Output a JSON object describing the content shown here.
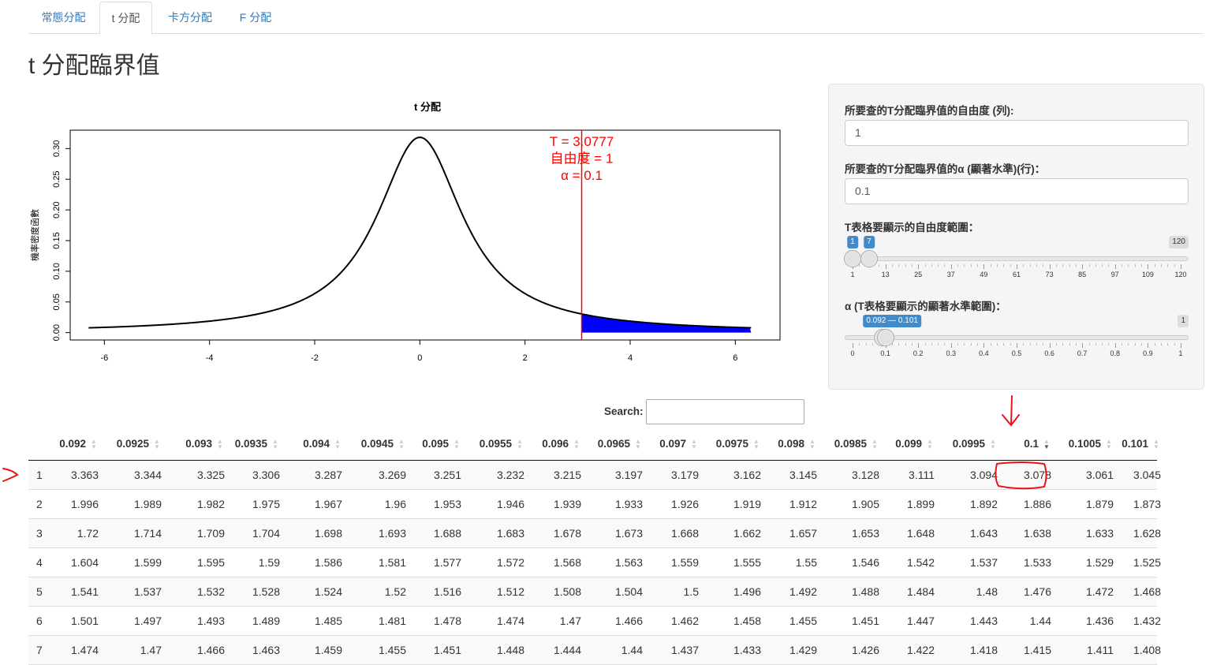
{
  "tabs": [
    {
      "label": "常態分配",
      "active": false
    },
    {
      "label": "t 分配",
      "active": true
    },
    {
      "label": "卡方分配",
      "active": false
    },
    {
      "label": "F 分配",
      "active": false
    }
  ],
  "page_title": "t 分配臨界值",
  "chart_data": {
    "type": "line",
    "title": "t 分配",
    "xlabel": "",
    "ylabel": "機率密度函數",
    "xlim": [
      -6.3,
      6.3
    ],
    "ylim": [
      0,
      0.32
    ],
    "x_ticks": [
      "-6",
      "-4",
      "-2",
      "0",
      "2",
      "4",
      "6"
    ],
    "y_ticks": [
      "0.00",
      "0.05",
      "0.10",
      "0.15",
      "0.20",
      "0.25",
      "0.30"
    ],
    "df": 1,
    "critical_value": 3.0777,
    "alpha": 0.1,
    "annotation_lines": [
      "T =  3.0777",
      "自由度 =  1",
      "α =  0.1"
    ],
    "line_color": "#000000",
    "critical_line_color": "#ff0000",
    "shade_color": "#0000ff"
  },
  "panel": {
    "df_label": "所要查的T分配臨界值的自由度 (列):",
    "df_value": "1",
    "alpha_label": "所要查的T分配臨界值的α (顯著水準)(行)：",
    "alpha_value": "0.1",
    "df_range_label": "T表格要顯示的自由度範圍：",
    "df_range": {
      "min": 1,
      "max": 120,
      "from": 1,
      "to": 7,
      "from_label": "1",
      "to_label": "7",
      "max_label": "120",
      "ticks": [
        "1",
        "13",
        "25",
        "37",
        "49",
        "61",
        "73",
        "85",
        "97",
        "109",
        "120"
      ]
    },
    "alpha_range_label": "α (T表格要顯示的顯著水準範圍)：",
    "alpha_range": {
      "min": 0,
      "max": 1,
      "from": 0.092,
      "to": 0.101,
      "badge": "0.092 — 0.101",
      "max_label": "1",
      "ticks": [
        "0",
        "0.1",
        "0.2",
        "0.3",
        "0.4",
        "0.5",
        "0.6",
        "0.7",
        "0.8",
        "0.9",
        "1"
      ]
    }
  },
  "search": {
    "label": "Search:"
  },
  "table": {
    "columns": [
      "0.092",
      "0.0925",
      "0.093",
      "0.0935",
      "0.094",
      "0.0945",
      "0.095",
      "0.0955",
      "0.096",
      "0.0965",
      "0.097",
      "0.0975",
      "0.098",
      "0.0985",
      "0.099",
      "0.0995",
      "0.1",
      "0.1005",
      "0.101"
    ],
    "sorted_column": "0.1",
    "rows": [
      {
        "idx": "1",
        "cells": [
          "3.363",
          "3.344",
          "3.325",
          "3.306",
          "3.287",
          "3.269",
          "3.251",
          "3.232",
          "3.215",
          "3.197",
          "3.179",
          "3.162",
          "3.145",
          "3.128",
          "3.111",
          "3.094",
          "3.078",
          "3.061",
          "3.045"
        ]
      },
      {
        "idx": "2",
        "cells": [
          "1.996",
          "1.989",
          "1.982",
          "1.975",
          "1.967",
          "1.96",
          "1.953",
          "1.946",
          "1.939",
          "1.933",
          "1.926",
          "1.919",
          "1.912",
          "1.905",
          "1.899",
          "1.892",
          "1.886",
          "1.879",
          "1.873"
        ]
      },
      {
        "idx": "3",
        "cells": [
          "1.72",
          "1.714",
          "1.709",
          "1.704",
          "1.698",
          "1.693",
          "1.688",
          "1.683",
          "1.678",
          "1.673",
          "1.668",
          "1.662",
          "1.657",
          "1.653",
          "1.648",
          "1.643",
          "1.638",
          "1.633",
          "1.628"
        ]
      },
      {
        "idx": "4",
        "cells": [
          "1.604",
          "1.599",
          "1.595",
          "1.59",
          "1.586",
          "1.581",
          "1.577",
          "1.572",
          "1.568",
          "1.563",
          "1.559",
          "1.555",
          "1.55",
          "1.546",
          "1.542",
          "1.537",
          "1.533",
          "1.529",
          "1.525"
        ]
      },
      {
        "idx": "5",
        "cells": [
          "1.541",
          "1.537",
          "1.532",
          "1.528",
          "1.524",
          "1.52",
          "1.516",
          "1.512",
          "1.508",
          "1.504",
          "1.5",
          "1.496",
          "1.492",
          "1.488",
          "1.484",
          "1.48",
          "1.476",
          "1.472",
          "1.468"
        ]
      },
      {
        "idx": "6",
        "cells": [
          "1.501",
          "1.497",
          "1.493",
          "1.489",
          "1.485",
          "1.481",
          "1.478",
          "1.474",
          "1.47",
          "1.466",
          "1.462",
          "1.458",
          "1.455",
          "1.451",
          "1.447",
          "1.443",
          "1.44",
          "1.436",
          "1.432"
        ]
      },
      {
        "idx": "7",
        "cells": [
          "1.474",
          "1.47",
          "1.466",
          "1.463",
          "1.459",
          "1.455",
          "1.451",
          "1.448",
          "1.444",
          "1.44",
          "1.437",
          "1.433",
          "1.429",
          "1.426",
          "1.422",
          "1.418",
          "1.415",
          "1.411",
          "1.408"
        ]
      }
    ]
  },
  "annotation_color": "#e8141c"
}
